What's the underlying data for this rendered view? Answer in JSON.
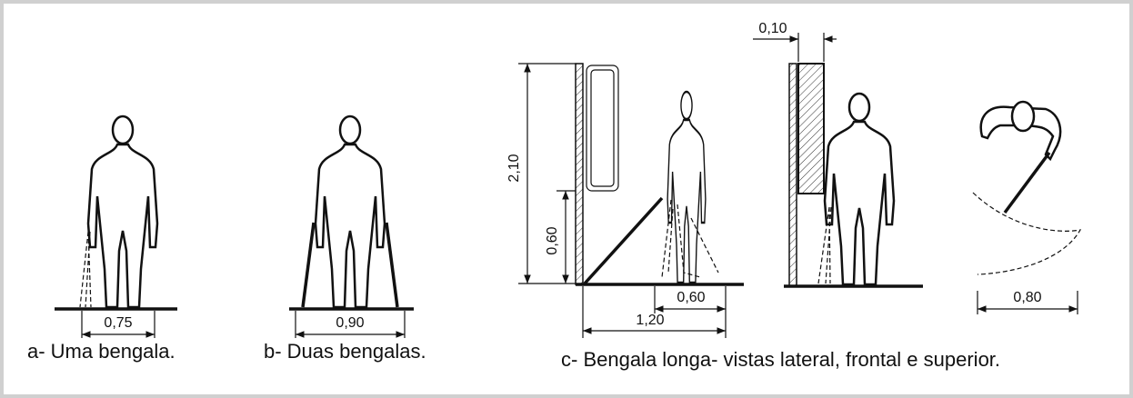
{
  "panels": [
    {
      "caption": "a- Uma bengala.",
      "dimensions": [
        "0,75"
      ]
    },
    {
      "caption": "b- Duas bengalas.",
      "dimensions": [
        "0,90"
      ]
    },
    {
      "caption": "c- Bengala longa- vistas lateral, frontal e superior.",
      "dimensions": [
        "2,10",
        "0,60",
        "0,60",
        "1,20",
        "0,10",
        "0,80"
      ]
    }
  ]
}
